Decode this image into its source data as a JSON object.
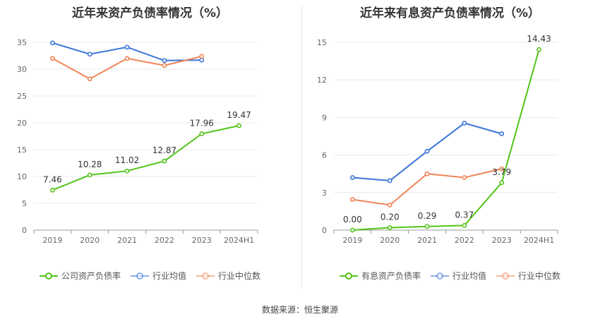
{
  "source": "数据来源：恒生聚源",
  "chart_data": [
    {
      "type": "line",
      "title": "近年来资产负债率情况（%）",
      "categories": [
        "2019",
        "2020",
        "2021",
        "2022",
        "2023",
        "2024H1"
      ],
      "ylim": [
        0,
        35
      ],
      "yticks": [
        0,
        5,
        10,
        15,
        20,
        25,
        30,
        35
      ],
      "grid": true,
      "legend_position": "bottom",
      "series": [
        {
          "name": "公司资产负债率",
          "color": "#52c41a",
          "values": [
            7.46,
            10.28,
            11.02,
            12.87,
            17.96,
            19.47
          ],
          "labels": [
            "7.46",
            "10.28",
            "11.02",
            "12.87",
            "17.96",
            "19.47"
          ]
        },
        {
          "name": "行业均值",
          "color": "#3a75d9",
          "values": [
            34.9,
            32.8,
            34.1,
            31.6,
            31.7,
            null
          ]
        },
        {
          "name": "行业中位数",
          "color": "#f08457",
          "values": [
            32.0,
            28.2,
            32.0,
            30.7,
            32.4,
            null
          ]
        }
      ]
    },
    {
      "type": "line",
      "title": "近年来有息资产负债率情况（%）",
      "categories": [
        "2019",
        "2020",
        "2021",
        "2022",
        "2023",
        "2024H1"
      ],
      "ylim": [
        0,
        15
      ],
      "yticks": [
        0,
        3,
        6,
        9,
        12,
        15
      ],
      "grid": true,
      "legend_position": "bottom",
      "series": [
        {
          "name": "有息资产负债率",
          "color": "#52c41a",
          "values": [
            0.0,
            0.2,
            0.29,
            0.37,
            3.79,
            14.43
          ],
          "labels": [
            "0.00",
            "0.20",
            "0.29",
            "0.37",
            "3.79",
            "14.43"
          ]
        },
        {
          "name": "行业均值",
          "color": "#3a75d9",
          "values": [
            4.2,
            3.95,
            6.3,
            8.55,
            7.7,
            null
          ]
        },
        {
          "name": "行业中位数",
          "color": "#f08457",
          "values": [
            2.45,
            2.0,
            4.5,
            4.2,
            4.9,
            null
          ]
        }
      ]
    }
  ]
}
